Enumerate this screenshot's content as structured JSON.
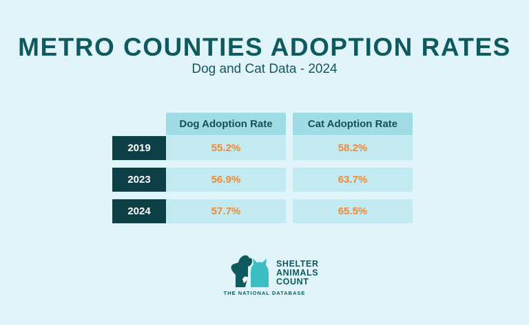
{
  "header": {
    "title": "METRO COUNTIES ADOPTION RATES",
    "subtitle": "Dog and Cat Data - 2024"
  },
  "table": {
    "columns": [
      "Dog Adoption Rate",
      "Cat Adoption Rate"
    ],
    "rows": [
      {
        "year": "2019",
        "dog": "55.2%",
        "cat": "58.2%"
      },
      {
        "year": "2023",
        "dog": "56.9%",
        "cat": "63.7%"
      },
      {
        "year": "2024",
        "dog": "57.7%",
        "cat": "65.5%"
      }
    ]
  },
  "logo": {
    "line1": "SHELTER",
    "line2": "ANIMALS",
    "line3": "COUNT",
    "tagline": "THE NATIONAL DATABASE",
    "icon": "dog-cat-silhouette-icon"
  },
  "colors": {
    "background": "#e0f4fa",
    "title": "#0f5a5e",
    "header_cell": "#9fdce6",
    "year_cell": "#0d3f46",
    "value_cell": "#c4eaf1",
    "value_text": "#ee8a36"
  }
}
